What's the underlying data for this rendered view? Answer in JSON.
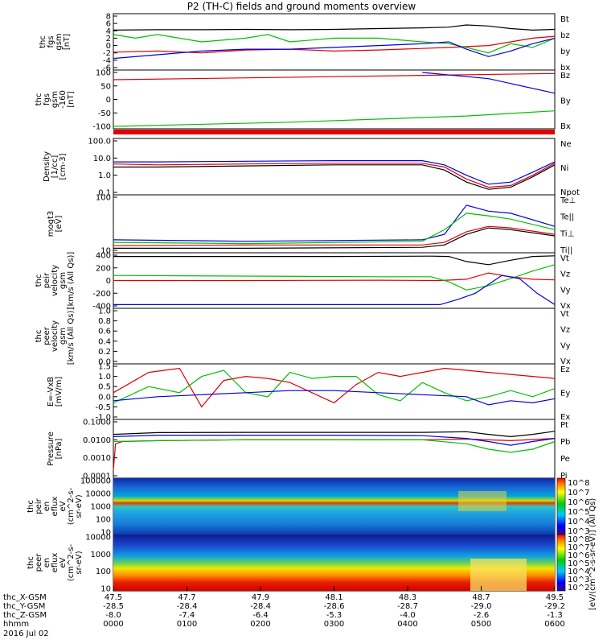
{
  "title": "P2 (TH-C) fields and ground moments overview",
  "colors": {
    "black": "#000000",
    "red": "#e00000",
    "green": "#00c000",
    "blue": "#0000e0"
  },
  "chart_data": [
    {
      "type": "line",
      "id": "fgs",
      "ylabel": [
        "thc",
        "fgs",
        "gsm",
        "[nT]"
      ],
      "ylim": [
        -6,
        8
      ],
      "yticks": [
        "8",
        "6",
        "4",
        "2",
        "0",
        "-2",
        "-4",
        "-6"
      ],
      "legend": [
        {
          "label": "Bt",
          "color": "#000000"
        },
        {
          "label": "bz",
          "color": "#e00000"
        },
        {
          "label": "by",
          "color": "#00c000"
        },
        {
          "label": "bx",
          "color": "#0000e0"
        }
      ],
      "series": [
        {
          "name": "Bt",
          "color": "#000000",
          "x": [
            0,
            0.1,
            0.2,
            0.3,
            0.4,
            0.5,
            0.6,
            0.7,
            0.76,
            0.8,
            0.85,
            0.9,
            0.95,
            1.0
          ],
          "y": [
            4.2,
            4.3,
            4.3,
            4.4,
            4.3,
            4.4,
            4.6,
            4.8,
            5.0,
            5.6,
            5.3,
            4.6,
            4.2,
            4.4
          ]
        },
        {
          "name": "bz",
          "color": "#e00000",
          "x": [
            0,
            0.1,
            0.2,
            0.3,
            0.4,
            0.5,
            0.6,
            0.7,
            0.76,
            0.8,
            0.85,
            0.9,
            0.95,
            1.0
          ],
          "y": [
            -1.8,
            -1.5,
            -2.0,
            -1.2,
            -1.0,
            -1.5,
            -1.2,
            -0.8,
            -0.5,
            -0.3,
            0.0,
            1.0,
            2.0,
            2.5
          ]
        },
        {
          "name": "by",
          "color": "#00c000",
          "x": [
            0,
            0.05,
            0.1,
            0.2,
            0.3,
            0.35,
            0.4,
            0.5,
            0.6,
            0.7,
            0.76,
            0.8,
            0.85,
            0.9,
            0.95,
            1.0
          ],
          "y": [
            3.0,
            2.0,
            3.0,
            1.0,
            2.0,
            3.0,
            1.0,
            2.0,
            2.0,
            1.0,
            0.5,
            -0.5,
            -2.0,
            0.5,
            -0.5,
            2.0
          ]
        },
        {
          "name": "bx",
          "color": "#0000e0",
          "x": [
            0,
            0.1,
            0.2,
            0.3,
            0.4,
            0.5,
            0.6,
            0.7,
            0.76,
            0.8,
            0.85,
            0.9,
            0.95,
            1.0
          ],
          "y": [
            -3.5,
            -2.5,
            -1.5,
            -1.0,
            -1.0,
            -0.5,
            0.0,
            0.5,
            1.0,
            -1.0,
            -3.0,
            -1.5,
            0.5,
            2.0
          ]
        }
      ]
    },
    {
      "type": "line",
      "id": "fgs_dsl",
      "ylabel": [
        "thc",
        "fgs",
        "gsm",
        "-160",
        "[nT]"
      ],
      "ylim": [
        -150,
        110
      ],
      "yticks": [
        "100",
        "50",
        "0",
        "-50",
        "-100"
      ],
      "legend": [
        {
          "label": "Bz",
          "color": "#e00000"
        },
        {
          "label": "By",
          "color": "#00c000"
        },
        {
          "label": "Bx",
          "color": "#0000e0"
        }
      ],
      "series": [
        {
          "name": "Bz",
          "color": "#e00000",
          "x": [
            0,
            0.5,
            1.0
          ],
          "y": [
            75,
            90,
            105
          ]
        },
        {
          "name": "By",
          "color": "#00c000",
          "x": [
            0,
            0.4,
            0.8,
            1.0
          ],
          "y": [
            -150,
            -130,
            -100,
            -75
          ]
        },
        {
          "name": "Bx",
          "color": "#0000e0",
          "x": [
            0.7,
            0.85,
            1.0
          ],
          "y": [
            110,
            80,
            10
          ]
        }
      ]
    },
    {
      "type": "line",
      "id": "density",
      "ylabel": [
        "Density",
        "[1/cc]",
        "[cm-3]"
      ],
      "ylim": [
        0.1,
        100
      ],
      "log": true,
      "yticks": [
        "100.0",
        "10.0",
        "1.0",
        "0.1"
      ],
      "legend": [
        {
          "label": "Ne",
          "color": "#e00000"
        },
        {
          "label": "Ni",
          "color": "#000000"
        },
        {
          "label": "Npot",
          "color": "#0000e0"
        }
      ],
      "series": [
        {
          "name": "Ne",
          "color": "#e00000",
          "x": [
            0,
            0.1,
            0.3,
            0.5,
            0.7,
            0.75,
            0.8,
            0.85,
            0.9,
            0.95,
            1.0
          ],
          "y": [
            4.5,
            4.0,
            4.5,
            5.0,
            5.0,
            3.0,
            0.6,
            0.2,
            0.25,
            1.0,
            5.0
          ]
        },
        {
          "name": "Ni",
          "color": "#000000",
          "x": [
            0,
            0.1,
            0.3,
            0.5,
            0.7,
            0.75,
            0.8,
            0.85,
            0.9,
            0.95,
            1.0
          ],
          "y": [
            3.0,
            3.0,
            3.5,
            4.0,
            4.0,
            2.0,
            0.4,
            0.15,
            0.2,
            0.8,
            4.0
          ]
        },
        {
          "name": "Npot",
          "color": "#0000e0",
          "x": [
            0,
            0.1,
            0.3,
            0.5,
            0.7,
            0.75,
            0.8,
            0.85,
            0.9,
            0.95,
            1.0
          ],
          "y": [
            6.0,
            6.0,
            6.5,
            7.0,
            7.0,
            4.0,
            1.0,
            0.3,
            0.4,
            1.5,
            6.0
          ]
        }
      ]
    },
    {
      "type": "line",
      "id": "temperature",
      "ylabel": [
        "mogt3",
        "[eV]"
      ],
      "ylim": [
        10,
        1000
      ],
      "log": true,
      "yticks": [
        "100",
        "10"
      ],
      "legend": [
        {
          "label": "Te⊥",
          "color": "#e00000"
        },
        {
          "label": "Te||",
          "color": "#000000"
        },
        {
          "label": "Ti⊥",
          "color": "#0000e0"
        },
        {
          "label": "Ti||",
          "color": "#00c000"
        }
      ],
      "series": [
        {
          "name": "Te⊥",
          "color": "#e00000",
          "x": [
            0,
            0.3,
            0.7,
            0.75,
            0.8,
            0.85,
            0.9,
            1.0
          ],
          "y": [
            15,
            16,
            16,
            20,
            50,
            80,
            70,
            40
          ]
        },
        {
          "name": "Te||",
          "color": "#000000",
          "x": [
            0,
            0.3,
            0.7,
            0.75,
            0.8,
            0.85,
            0.9,
            1.0
          ],
          "y": [
            12,
            12,
            13,
            16,
            40,
            70,
            60,
            35
          ]
        },
        {
          "name": "Ti⊥",
          "color": "#0000e0",
          "x": [
            0,
            0.3,
            0.7,
            0.75,
            0.8,
            0.85,
            0.9,
            1.0
          ],
          "y": [
            25,
            22,
            25,
            40,
            500,
            300,
            250,
            80
          ]
        },
        {
          "name": "Ti||",
          "color": "#00c000",
          "x": [
            0,
            0.3,
            0.7,
            0.75,
            0.8,
            0.85,
            0.9,
            1.0
          ],
          "y": [
            20,
            18,
            22,
            60,
            250,
            200,
            150,
            60
          ]
        }
      ]
    },
    {
      "type": "line",
      "id": "ion_velocity",
      "ylabel": [
        "thc",
        "peir",
        "velocity",
        "gsm",
        "[km/s (All Qs)]"
      ],
      "ylim": [
        -400,
        400
      ],
      "yticks": [
        "400",
        "200",
        "0",
        "-200",
        "-400"
      ],
      "legend": [
        {
          "label": "Vt",
          "color": "#000000"
        },
        {
          "label": "Vz",
          "color": "#e00000"
        },
        {
          "label": "Vy",
          "color": "#00c000"
        },
        {
          "label": "Vx",
          "color": "#0000e0"
        }
      ],
      "series": [
        {
          "name": "Vt",
          "color": "#000000",
          "x": [
            0,
            0.2,
            0.5,
            0.72,
            0.76,
            0.8,
            0.85,
            0.9,
            0.95,
            1.0
          ],
          "y": [
            380,
            380,
            380,
            385,
            380,
            300,
            250,
            320,
            380,
            390
          ]
        },
        {
          "name": "Vz",
          "color": "#e00000",
          "x": [
            0,
            0.3,
            0.6,
            0.74,
            0.8,
            0.85,
            0.9,
            0.95,
            1.0
          ],
          "y": [
            0,
            0,
            5,
            0,
            20,
            120,
            60,
            20,
            10
          ]
        },
        {
          "name": "Vy",
          "color": "#00c000",
          "x": [
            0,
            0.3,
            0.6,
            0.72,
            0.76,
            0.8,
            0.85,
            0.9,
            0.95,
            1.0
          ],
          "y": [
            80,
            70,
            60,
            60,
            -20,
            -150,
            -80,
            30,
            150,
            250
          ]
        },
        {
          "name": "Vx",
          "color": "#0000e0",
          "x": [
            0,
            0.3,
            0.6,
            0.74,
            0.78,
            0.82,
            0.88,
            0.92,
            0.96,
            1.0
          ],
          "y": [
            -380,
            -380,
            -380,
            -380,
            -300,
            -200,
            80,
            30,
            -200,
            -380
          ]
        }
      ]
    },
    {
      "type": "line",
      "id": "electron_velocity",
      "ylabel": [
        "thc",
        "peer",
        "velocity",
        "gsm",
        "[km/s (All Qs)]"
      ],
      "ylim": [
        0,
        1.0
      ],
      "yticks": [
        "1.0",
        "0.8",
        "0.6",
        "0.4",
        "0.2",
        "0.0"
      ],
      "legend": [
        {
          "label": "Vt",
          "color": "#000000"
        },
        {
          "label": "Vz",
          "color": "#e00000"
        },
        {
          "label": "Vy",
          "color": "#00c000"
        },
        {
          "label": "Vx",
          "color": "#0000e0"
        }
      ],
      "series": []
    },
    {
      "type": "line",
      "id": "efield",
      "ylabel": [
        "E=-VxB",
        "[mV/m]"
      ],
      "ylim": [
        -1.0,
        1.5
      ],
      "yticks": [
        "1.5",
        "1.0",
        "0.5",
        "0.0",
        "-0.5",
        "-1.0"
      ],
      "legend": [
        {
          "label": "Ez",
          "color": "#e00000"
        },
        {
          "label": "Ey",
          "color": "#00c000"
        },
        {
          "label": "Ex",
          "color": "#0000e0"
        }
      ],
      "series": [
        {
          "name": "Ez",
          "color": "#e00000",
          "x": [
            0,
            0.08,
            0.15,
            0.2,
            0.25,
            0.3,
            0.35,
            0.4,
            0.45,
            0.5,
            0.55,
            0.6,
            0.65,
            0.7,
            0.75,
            0.8,
            0.85,
            0.9,
            0.95,
            1.0
          ],
          "y": [
            0.2,
            1.2,
            1.4,
            -0.5,
            0.8,
            1.0,
            0.9,
            0.7,
            0.2,
            -0.3,
            0.6,
            1.2,
            1.0,
            1.2,
            1.4,
            1.3,
            1.2,
            1.1,
            1.0,
            0.9
          ]
        },
        {
          "name": "Ey",
          "color": "#00c000",
          "x": [
            0,
            0.08,
            0.15,
            0.2,
            0.25,
            0.3,
            0.35,
            0.4,
            0.45,
            0.5,
            0.55,
            0.6,
            0.65,
            0.7,
            0.75,
            0.8,
            0.85,
            0.9,
            0.95,
            1.0
          ],
          "y": [
            -0.3,
            0.5,
            0.2,
            1.0,
            1.3,
            0.2,
            0.0,
            1.2,
            0.9,
            1.0,
            1.0,
            0.1,
            -0.2,
            0.7,
            0.2,
            -0.2,
            0.0,
            0.3,
            0.0,
            0.4
          ]
        },
        {
          "name": "Ex",
          "color": "#0000e0",
          "x": [
            0,
            0.1,
            0.2,
            0.3,
            0.4,
            0.5,
            0.6,
            0.7,
            0.8,
            0.85,
            0.9,
            0.95,
            1.0
          ],
          "y": [
            -0.2,
            0.0,
            0.1,
            0.2,
            0.3,
            0.3,
            0.2,
            0.1,
            0.0,
            -0.4,
            -0.2,
            -0.3,
            -0.1
          ]
        }
      ]
    },
    {
      "type": "line",
      "id": "pressure",
      "ylabel": [
        "Pressure",
        "[nPa]"
      ],
      "ylim": [
        0.0001,
        0.1
      ],
      "log": true,
      "yticks": [
        "0.1000",
        "0.0100",
        "0.0010",
        "0.0001"
      ],
      "legend": [
        {
          "label": "Pt",
          "color": "#000000"
        },
        {
          "label": "Pb",
          "color": "#e00000"
        },
        {
          "label": "Pe",
          "color": "#00c000"
        },
        {
          "label": "Pi",
          "color": "#0000e0"
        }
      ],
      "series": [
        {
          "name": "Pt",
          "color": "#000000",
          "x": [
            0,
            0.1,
            0.3,
            0.5,
            0.7,
            0.8,
            0.85,
            0.9,
            0.95,
            1.0
          ],
          "y": [
            0.02,
            0.025,
            0.026,
            0.026,
            0.026,
            0.028,
            0.02,
            0.015,
            0.02,
            0.03
          ]
        },
        {
          "name": "Pb",
          "color": "#e00000",
          "x": [
            0,
            0.005,
            0.02,
            0.1,
            0.3,
            0.5,
            0.7,
            0.8,
            0.9,
            1.0
          ],
          "y": [
            0.0002,
            0.006,
            0.008,
            0.009,
            0.01,
            0.01,
            0.01,
            0.011,
            0.009,
            0.012
          ]
        },
        {
          "name": "Pe",
          "color": "#00c000",
          "x": [
            0,
            0.1,
            0.3,
            0.5,
            0.7,
            0.8,
            0.85,
            0.9,
            0.95,
            1.0
          ],
          "y": [
            0.008,
            0.009,
            0.01,
            0.01,
            0.01,
            0.006,
            0.003,
            0.002,
            0.003,
            0.008
          ]
        },
        {
          "name": "Pi",
          "color": "#0000e0",
          "x": [
            0,
            0.1,
            0.3,
            0.5,
            0.7,
            0.8,
            0.85,
            0.9,
            0.95,
            1.0
          ],
          "y": [
            0.015,
            0.018,
            0.018,
            0.018,
            0.017,
            0.012,
            0.008,
            0.005,
            0.008,
            0.012
          ]
        }
      ]
    },
    {
      "type": "heatmap",
      "id": "ion_spectrogram",
      "ylabel": [
        "thc",
        "peir",
        "en",
        "eflux",
        "eV",
        "(cm^2-s-",
        "sr-eV)"
      ],
      "yticks": [
        "100000",
        "10000",
        "1000",
        "100",
        "10"
      ],
      "colorbar_ticks": [
        "10^8",
        "10^7",
        "10^6",
        "10^5",
        "10^4",
        "10^3"
      ],
      "colorbar_label": "[eV/(cm^2-s-sr-eV)] (All Qs)"
    },
    {
      "type": "heatmap",
      "id": "electron_spectrogram",
      "ylabel": [
        "thc",
        "peer",
        "en",
        "eflux",
        "eV",
        "(cm^2-s-",
        "sr-eV)"
      ],
      "yticks": [
        "10000",
        "1000",
        "100",
        "10"
      ],
      "colorbar_ticks": [
        "10^8",
        "10^7",
        "10^6",
        "10^5",
        "10^4",
        "10^3",
        "10^2"
      ],
      "colorbar_label": "[eV/(cm^2-s-sr-eV)] (All Qs)"
    }
  ],
  "footer": {
    "row_labels": [
      "thc_X-GSM",
      "thc_Y-GSM",
      "thc_Z-GSM",
      "hhmm",
      "2016 Jul 02"
    ],
    "columns": [
      {
        "x": "47.5",
        "y": "-28.5",
        "z": "-8.0",
        "t": "0000"
      },
      {
        "x": "47.7",
        "y": "-28.4",
        "z": "-7.4",
        "t": "0100"
      },
      {
        "x": "47.9",
        "y": "-28.4",
        "z": "-6.4",
        "t": "0200"
      },
      {
        "x": "48.1",
        "y": "-28.6",
        "z": "-5.3",
        "t": "0300"
      },
      {
        "x": "48.3",
        "y": "-28.7",
        "z": "-4.0",
        "t": "0400"
      },
      {
        "x": "48.7",
        "y": "-29.0",
        "z": "-2.6",
        "t": "0500"
      },
      {
        "x": "49.5",
        "y": "-29.2",
        "z": "-1.3",
        "t": "0600"
      }
    ]
  }
}
